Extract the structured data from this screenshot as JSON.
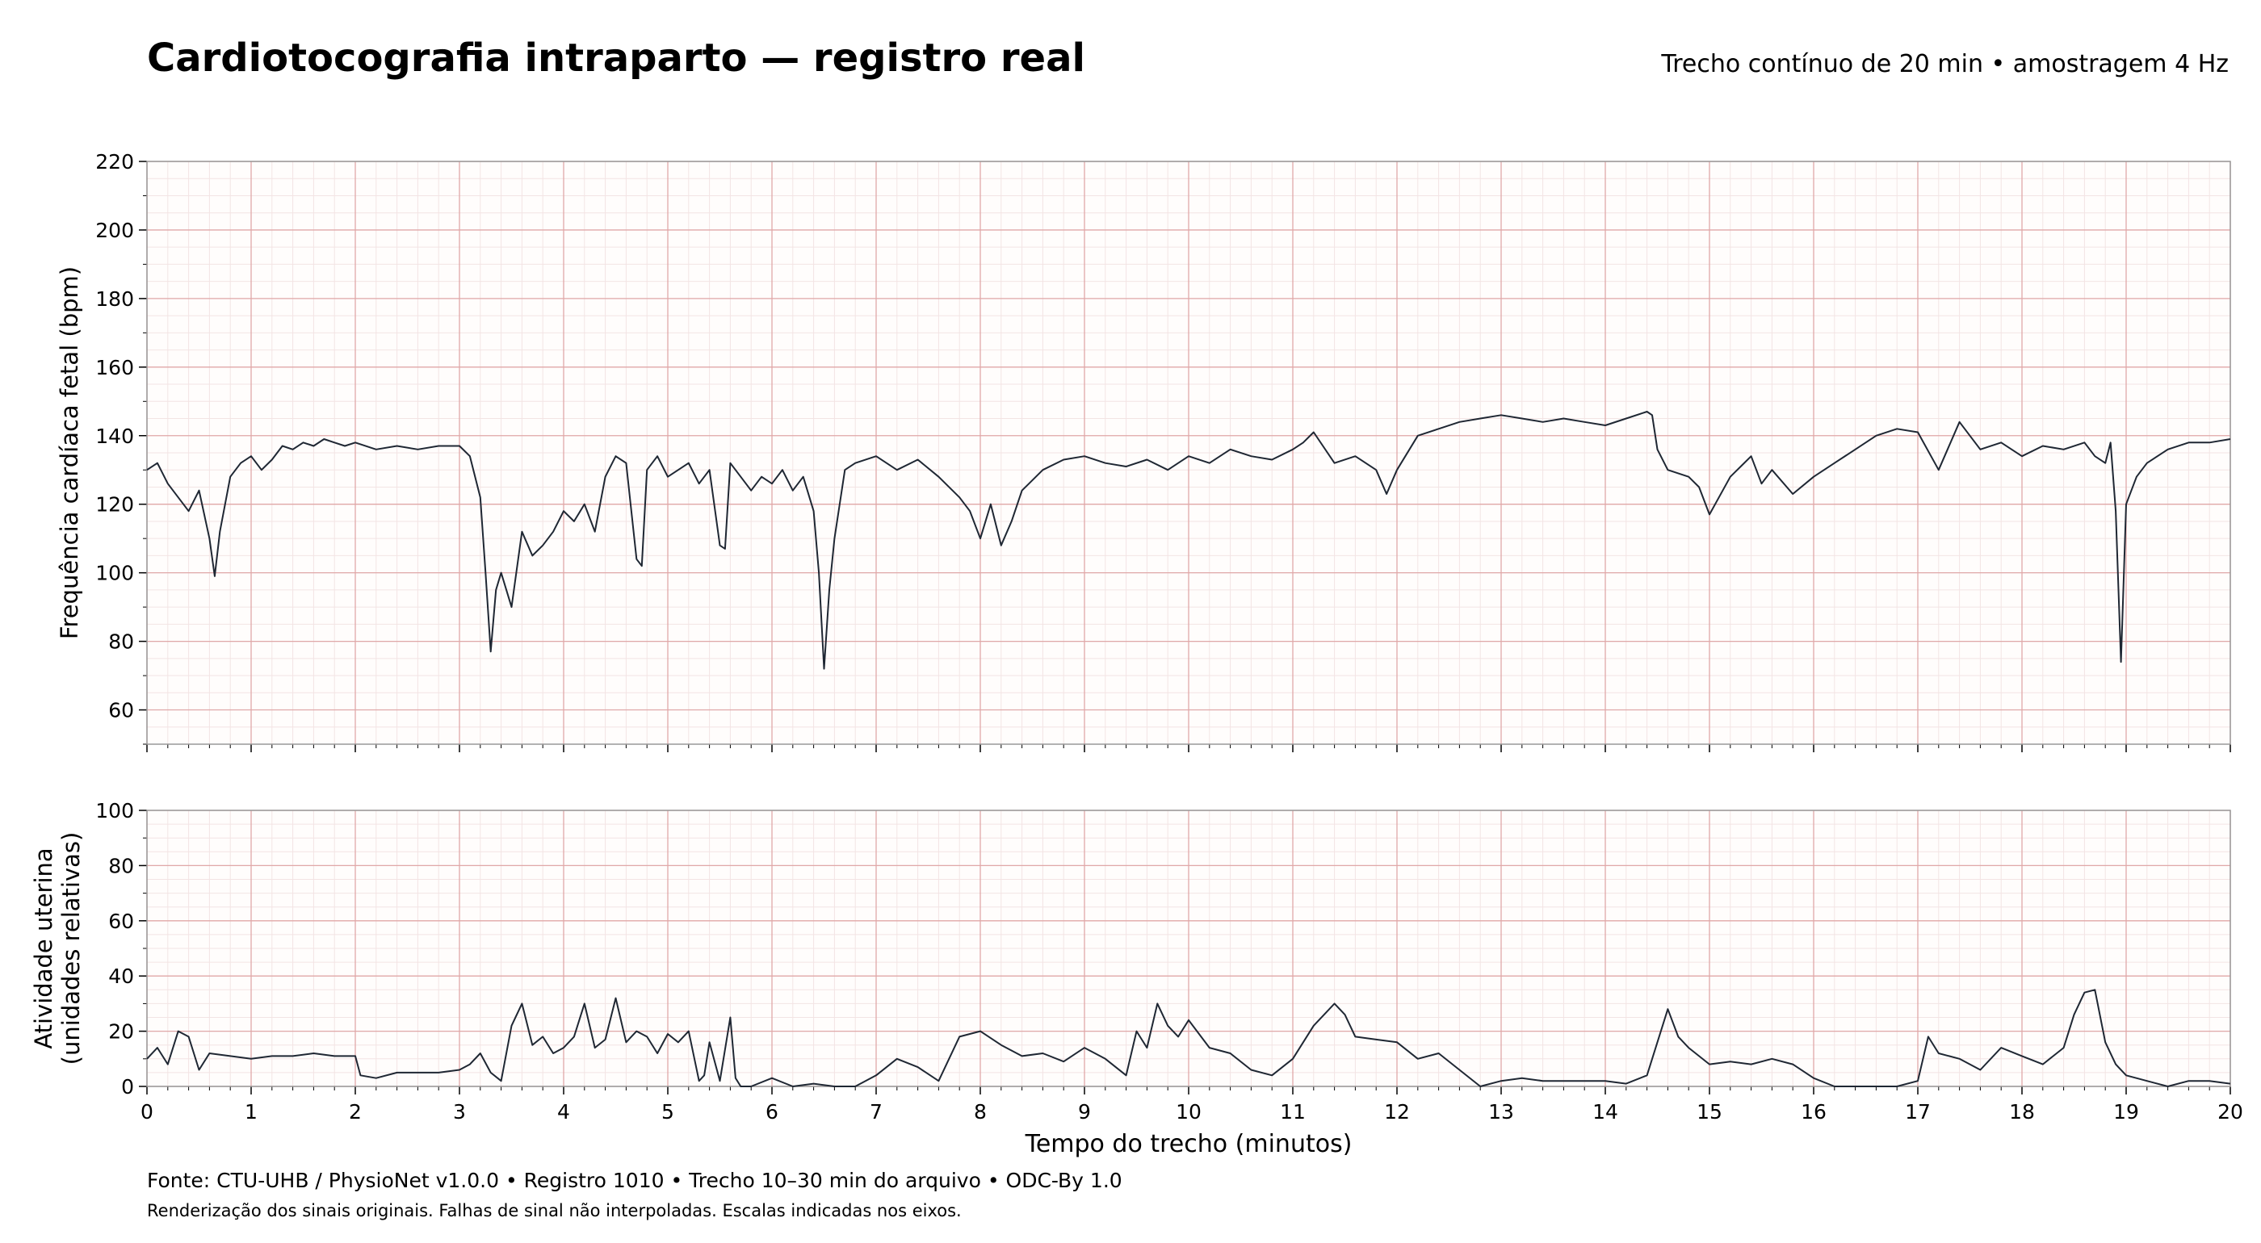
{
  "header": {
    "title": "Cardiotocografia intraparto — registro real",
    "subtitle": "Trecho contínuo de 20 min • amostragem 4 Hz"
  },
  "footer": {
    "source": "Fonte: CTU-UHB / PhysioNet v1.0.0 • Registro 1010 • Trecho 10–30 min do arquivo • ODC-By 1.0",
    "note": "Renderização dos sinais originais. Falhas de sinal não interpoladas. Escalas indicadas nos eixos."
  },
  "colors": {
    "trace": "#1f2733",
    "grid_major": "#e0a8a8",
    "grid_minor": "#f3e4e4",
    "axis": "#999999"
  },
  "chart_data": [
    {
      "type": "line",
      "name": "fhr",
      "xlabel": "",
      "ylabel": "Frequência cardíaca fetal (bpm)",
      "xlim": [
        0,
        20
      ],
      "ylim": [
        50,
        220
      ],
      "yticks": [
        60,
        80,
        100,
        120,
        140,
        160,
        180,
        200,
        220
      ],
      "grid": true,
      "x": [
        0,
        0.1,
        0.2,
        0.3,
        0.4,
        0.5,
        0.6,
        0.65,
        0.7,
        0.8,
        0.9,
        1.0,
        1.1,
        1.2,
        1.3,
        1.4,
        1.5,
        1.6,
        1.7,
        1.8,
        1.9,
        2.0,
        2.2,
        2.4,
        2.6,
        2.8,
        3.0,
        3.1,
        3.2,
        3.25,
        3.3,
        3.35,
        3.4,
        3.5,
        3.6,
        3.7,
        3.8,
        3.9,
        4.0,
        4.1,
        4.2,
        4.3,
        4.4,
        4.5,
        4.6,
        4.7,
        4.75,
        4.8,
        4.9,
        5.0,
        5.1,
        5.2,
        5.3,
        5.4,
        5.5,
        5.55,
        5.6,
        5.7,
        5.8,
        5.9,
        6.0,
        6.1,
        6.2,
        6.3,
        6.4,
        6.45,
        6.5,
        6.55,
        6.6,
        6.7,
        6.8,
        7.0,
        7.2,
        7.4,
        7.6,
        7.8,
        7.9,
        8.0,
        8.1,
        8.2,
        8.3,
        8.4,
        8.6,
        8.8,
        9.0,
        9.2,
        9.4,
        9.6,
        9.8,
        10.0,
        10.2,
        10.4,
        10.6,
        10.8,
        11.0,
        11.1,
        11.2,
        11.4,
        11.6,
        11.8,
        11.9,
        12.0,
        12.2,
        12.4,
        12.6,
        12.8,
        13.0,
        13.2,
        13.4,
        13.6,
        13.8,
        14.0,
        14.2,
        14.4,
        14.45,
        14.5,
        14.6,
        14.8,
        14.9,
        15.0,
        15.2,
        15.4,
        15.5,
        15.6,
        15.8,
        16.0,
        16.2,
        16.4,
        16.6,
        16.8,
        17.0,
        17.2,
        17.4,
        17.6,
        17.8,
        18.0,
        18.2,
        18.4,
        18.6,
        18.7,
        18.8,
        18.85,
        18.9,
        18.95,
        19.0,
        19.1,
        19.2,
        19.4,
        19.6,
        19.8,
        20.0
      ],
      "y": [
        130,
        132,
        126,
        122,
        118,
        124,
        110,
        99,
        112,
        128,
        132,
        134,
        130,
        133,
        137,
        136,
        138,
        137,
        139,
        138,
        137,
        138,
        136,
        137,
        136,
        137,
        137,
        134,
        122,
        100,
        77,
        95,
        100,
        90,
        112,
        105,
        108,
        112,
        118,
        115,
        120,
        112,
        128,
        134,
        132,
        104,
        102,
        130,
        134,
        128,
        130,
        132,
        126,
        130,
        108,
        107,
        132,
        128,
        124,
        128,
        126,
        130,
        124,
        128,
        118,
        100,
        72,
        95,
        110,
        130,
        132,
        134,
        130,
        133,
        128,
        122,
        118,
        110,
        120,
        108,
        115,
        124,
        130,
        133,
        134,
        132,
        131,
        133,
        130,
        134,
        132,
        136,
        134,
        133,
        136,
        138,
        141,
        132,
        134,
        130,
        123,
        130,
        140,
        142,
        144,
        145,
        146,
        145,
        144,
        145,
        144,
        143,
        145,
        147,
        146,
        136,
        130,
        128,
        125,
        117,
        128,
        134,
        126,
        130,
        123,
        128,
        132,
        136,
        140,
        142,
        141,
        130,
        144,
        136,
        138,
        134,
        137,
        136,
        138,
        134,
        132,
        138,
        118,
        74,
        120,
        128,
        132,
        136,
        138,
        138,
        139
      ]
    },
    {
      "type": "line",
      "name": "ua",
      "xlabel": "Tempo do trecho (minutos)",
      "ylabel": "Atividade uterina (unidades relativas)",
      "xlim": [
        0,
        20
      ],
      "ylim": [
        0,
        100
      ],
      "xticks": [
        0,
        1,
        2,
        3,
        4,
        5,
        6,
        7,
        8,
        9,
        10,
        11,
        12,
        13,
        14,
        15,
        16,
        17,
        18,
        19,
        20
      ],
      "yticks": [
        0,
        20,
        40,
        60,
        80,
        100
      ],
      "grid": true,
      "x": [
        0,
        0.1,
        0.2,
        0.3,
        0.4,
        0.5,
        0.6,
        0.8,
        1.0,
        1.2,
        1.4,
        1.6,
        1.8,
        2.0,
        2.05,
        2.2,
        2.4,
        2.6,
        2.8,
        3.0,
        3.1,
        3.2,
        3.3,
        3.4,
        3.5,
        3.6,
        3.7,
        3.8,
        3.9,
        4.0,
        4.1,
        4.2,
        4.3,
        4.4,
        4.5,
        4.6,
        4.7,
        4.8,
        4.9,
        5.0,
        5.1,
        5.2,
        5.3,
        5.35,
        5.4,
        5.5,
        5.6,
        5.65,
        5.7,
        5.8,
        6.0,
        6.2,
        6.4,
        6.6,
        6.8,
        7.0,
        7.2,
        7.4,
        7.6,
        7.8,
        8.0,
        8.2,
        8.4,
        8.6,
        8.8,
        9.0,
        9.2,
        9.4,
        9.5,
        9.6,
        9.7,
        9.8,
        9.9,
        10.0,
        10.2,
        10.4,
        10.6,
        10.8,
        11.0,
        11.2,
        11.4,
        11.5,
        11.6,
        11.8,
        12.0,
        12.2,
        12.4,
        12.6,
        12.8,
        13.0,
        13.2,
        13.4,
        13.6,
        13.8,
        14.0,
        14.2,
        14.4,
        14.6,
        14.7,
        14.8,
        15.0,
        15.2,
        15.4,
        15.6,
        15.8,
        16.0,
        16.2,
        16.4,
        16.6,
        16.8,
        17.0,
        17.1,
        17.2,
        17.4,
        17.6,
        17.8,
        18.0,
        18.2,
        18.4,
        18.5,
        18.6,
        18.7,
        18.8,
        18.9,
        19.0,
        19.2,
        19.4,
        19.6,
        19.8,
        20.0
      ],
      "y": [
        10,
        14,
        8,
        20,
        18,
        6,
        12,
        11,
        10,
        11,
        11,
        12,
        11,
        11,
        4,
        3,
        5,
        5,
        5,
        6,
        8,
        12,
        5,
        2,
        22,
        30,
        15,
        18,
        12,
        14,
        18,
        30,
        14,
        17,
        32,
        16,
        20,
        18,
        12,
        19,
        16,
        20,
        2,
        4,
        16,
        2,
        25,
        3,
        0,
        0,
        3,
        0,
        1,
        0,
        0,
        4,
        10,
        7,
        2,
        18,
        20,
        15,
        11,
        12,
        9,
        14,
        10,
        4,
        20,
        14,
        30,
        22,
        18,
        24,
        14,
        12,
        6,
        4,
        10,
        22,
        30,
        26,
        18,
        17,
        16,
        10,
        12,
        6,
        0,
        2,
        3,
        2,
        2,
        2,
        2,
        1,
        4,
        28,
        18,
        14,
        8,
        9,
        8,
        10,
        8,
        3,
        0,
        0,
        0,
        0,
        2,
        18,
        12,
        10,
        6,
        14,
        11,
        8,
        14,
        26,
        34,
        35,
        16,
        8,
        4,
        2,
        0,
        2,
        2,
        1
      ]
    }
  ]
}
